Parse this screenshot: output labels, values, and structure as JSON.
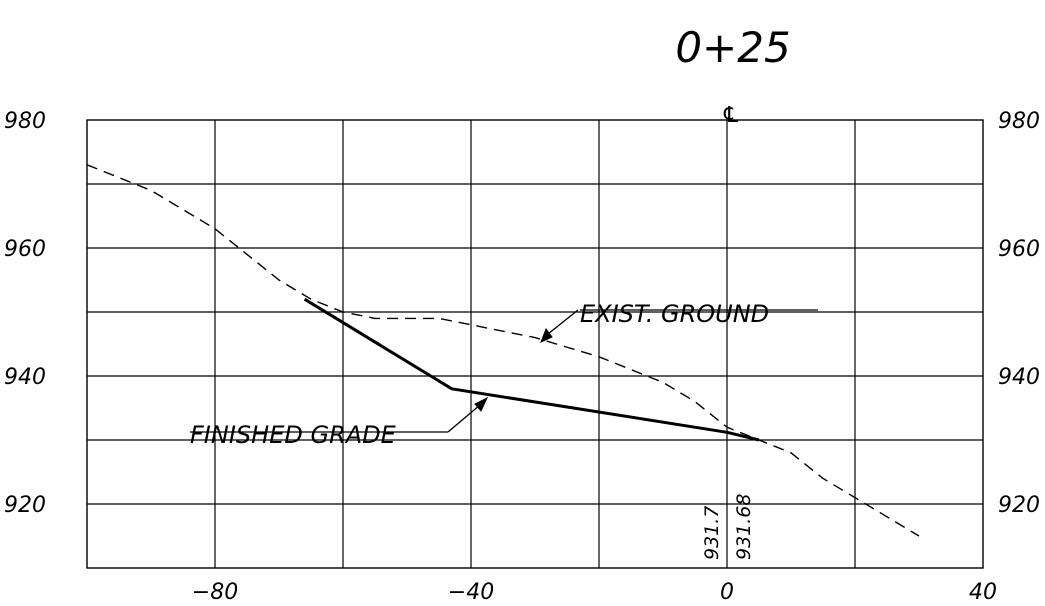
{
  "title": "0+25",
  "centerline_symbol": "℄",
  "chart_data": {
    "type": "line",
    "xlim": [
      -100,
      40
    ],
    "ylim": [
      910,
      980
    ],
    "x_ticks": [
      -80,
      -40,
      0,
      40
    ],
    "x_tick_labels": [
      "−80",
      "−40",
      "0",
      "40"
    ],
    "y_ticks": [
      980,
      960,
      940,
      920
    ],
    "y_tick_labels": [
      "980",
      "960",
      "940",
      "920"
    ],
    "grid": true,
    "series": [
      {
        "name": "EXIST. GROUND",
        "style": "dashed",
        "points": [
          [
            -100,
            973
          ],
          [
            -90,
            969
          ],
          [
            -85,
            966
          ],
          [
            -80,
            963
          ],
          [
            -75,
            959
          ],
          [
            -70,
            955
          ],
          [
            -65,
            952
          ],
          [
            -60,
            950
          ],
          [
            -55,
            949
          ],
          [
            -45,
            949
          ],
          [
            -40,
            948
          ],
          [
            -30,
            946
          ],
          [
            -20,
            943
          ],
          [
            -10,
            939
          ],
          [
            -5,
            936
          ],
          [
            0,
            932
          ],
          [
            5,
            930
          ],
          [
            10,
            928
          ],
          [
            15,
            924
          ],
          [
            20,
            921
          ],
          [
            25,
            918
          ],
          [
            30,
            915
          ]
        ]
      },
      {
        "name": "FINISHED GRADE",
        "style": "solid",
        "points": [
          [
            -66,
            952
          ],
          [
            -43,
            938
          ],
          [
            0,
            931.2
          ],
          [
            5,
            930
          ]
        ]
      }
    ],
    "annotations": [
      {
        "text": "EXIST. GROUND"
      },
      {
        "text": "FINISHED GRADE"
      },
      {
        "text": "931.7"
      },
      {
        "text": "931.68"
      }
    ]
  }
}
